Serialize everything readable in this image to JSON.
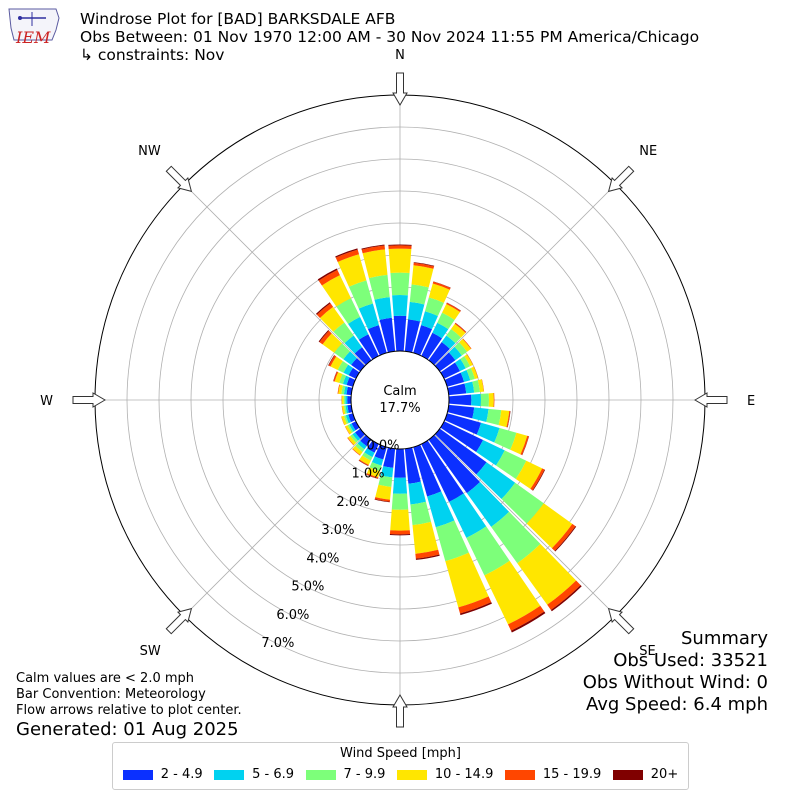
{
  "header": {
    "title": "Windrose Plot for [BAD] BARKSDALE AFB",
    "obs_range": "Obs Between: 01 Nov 1970 12:00 AM - 30 Nov 2024 11:55 PM America/Chicago",
    "constraints": "↳ constraints: Nov"
  },
  "logo": {
    "text": "IEM",
    "color": "#cc2222"
  },
  "summary": {
    "title": "Summary",
    "obs_used": "Obs Used: 33521",
    "obs_without_wind": "Obs Without Wind: 0",
    "avg_speed": "Avg Speed: 6.4 mph"
  },
  "notes": {
    "calm": "Calm values are < 2.0 mph",
    "convention": "Bar Convention: Meteorology",
    "flow": "Flow arrows relative to plot center."
  },
  "generated": "Generated: 01 Aug 2025",
  "legend": {
    "title": "Wind Speed [mph]",
    "items": [
      {
        "label": "2 - 4.9",
        "color": "#0b30ff"
      },
      {
        "label": "5 - 6.9",
        "color": "#00d2f0"
      },
      {
        "label": "7 - 9.9",
        "color": "#7dff7a"
      },
      {
        "label": "10 - 14.9",
        "color": "#ffe600"
      },
      {
        "label": "15 - 19.9",
        "color": "#ff4600"
      },
      {
        "label": "20+",
        "color": "#800000"
      }
    ]
  },
  "chart_data": {
    "type": "windrose",
    "calm_label": "Calm",
    "calm_value": "17.7%",
    "radial_ticks": [
      "0.0%",
      "1.0%",
      "2.0%",
      "3.0%",
      "4.0%",
      "5.0%",
      "6.0%",
      "7.0%"
    ],
    "rmax": 8.0,
    "directions": [
      "N",
      "NE",
      "E",
      "SE",
      "S",
      "SW",
      "W",
      "NW"
    ],
    "bin_directions_deg": [
      0,
      10,
      20,
      30,
      40,
      50,
      60,
      70,
      80,
      90,
      100,
      110,
      120,
      130,
      140,
      150,
      160,
      170,
      180,
      190,
      200,
      210,
      220,
      230,
      240,
      250,
      260,
      270,
      280,
      290,
      300,
      310,
      320,
      330,
      340,
      350
    ],
    "bins": [
      {
        "name": "2 - 4.9",
        "color": "#0b30ff",
        "values": [
          1.1,
          1.0,
          0.9,
          0.8,
          0.7,
          0.6,
          0.55,
          0.55,
          0.55,
          0.7,
          0.8,
          1.1,
          1.35,
          1.8,
          2.05,
          2.0,
          1.6,
          1.1,
          0.9,
          0.6,
          0.4,
          0.3,
          0.25,
          0.2,
          0.15,
          0.15,
          0.12,
          0.12,
          0.15,
          0.2,
          0.25,
          0.35,
          0.5,
          0.75,
          0.9,
          1.05
        ]
      },
      {
        "name": "5 - 6.9",
        "color": "#00d2f0",
        "values": [
          0.65,
          0.55,
          0.45,
          0.35,
          0.25,
          0.25,
          0.2,
          0.2,
          0.25,
          0.3,
          0.45,
          0.6,
          0.75,
          1.1,
          1.3,
          1.25,
          1.0,
          0.65,
          0.5,
          0.3,
          0.2,
          0.15,
          0.12,
          0.1,
          0.08,
          0.08,
          0.06,
          0.06,
          0.08,
          0.12,
          0.18,
          0.3,
          0.45,
          0.6,
          0.7,
          0.65
        ]
      },
      {
        "name": "7 - 9.9",
        "color": "#7dff7a",
        "values": [
          0.7,
          0.55,
          0.45,
          0.35,
          0.25,
          0.2,
          0.15,
          0.15,
          0.18,
          0.25,
          0.4,
          0.55,
          0.75,
          1.1,
          1.4,
          1.3,
          1.1,
          0.65,
          0.5,
          0.3,
          0.18,
          0.12,
          0.1,
          0.08,
          0.06,
          0.06,
          0.05,
          0.05,
          0.08,
          0.12,
          0.2,
          0.35,
          0.5,
          0.65,
          0.75,
          0.7
        ]
      },
      {
        "name": "10 - 14.9",
        "color": "#ffe600",
        "values": [
          0.75,
          0.6,
          0.45,
          0.3,
          0.2,
          0.15,
          0.1,
          0.1,
          0.12,
          0.15,
          0.25,
          0.35,
          0.55,
          1.1,
          1.6,
          1.7,
          1.5,
          0.9,
          0.65,
          0.4,
          0.2,
          0.15,
          0.12,
          0.1,
          0.08,
          0.08,
          0.06,
          0.06,
          0.1,
          0.15,
          0.25,
          0.45,
          0.6,
          0.8,
          0.85,
          0.8
        ]
      },
      {
        "name": "15 - 19.9",
        "color": "#ff4600",
        "values": [
          0.1,
          0.08,
          0.06,
          0.04,
          0.03,
          0.02,
          0.01,
          0.01,
          0.01,
          0.02,
          0.03,
          0.05,
          0.08,
          0.12,
          0.2,
          0.22,
          0.2,
          0.15,
          0.12,
          0.06,
          0.04,
          0.03,
          0.02,
          0.02,
          0.01,
          0.01,
          0.01,
          0.01,
          0.02,
          0.04,
          0.06,
          0.12,
          0.14,
          0.18,
          0.15,
          0.12
        ]
      },
      {
        "name": "20+",
        "color": "#800000",
        "values": [
          0.03,
          0.02,
          0.01,
          0.01,
          0.01,
          0.0,
          0.0,
          0.0,
          0.0,
          0.0,
          0.01,
          0.01,
          0.02,
          0.03,
          0.05,
          0.06,
          0.05,
          0.04,
          0.03,
          0.02,
          0.01,
          0.01,
          0.0,
          0.0,
          0.0,
          0.0,
          0.0,
          0.0,
          0.0,
          0.01,
          0.02,
          0.03,
          0.04,
          0.05,
          0.04,
          0.03
        ]
      }
    ]
  }
}
